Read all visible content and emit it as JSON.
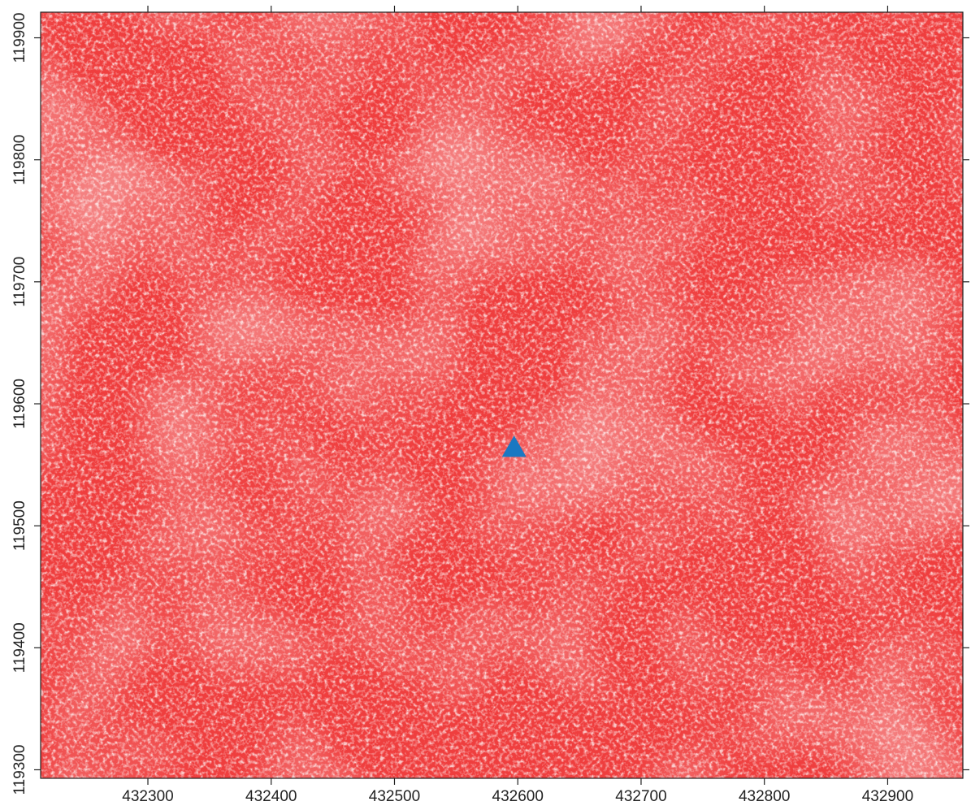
{
  "chart_data": {
    "type": "raster",
    "xlim": [
      432213,
      432961
    ],
    "ylim": [
      119293,
      119921
    ],
    "xticks": [
      432300,
      432400,
      432500,
      432600,
      432700,
      432800,
      432900
    ],
    "yticks": [
      119300,
      119400,
      119500,
      119600,
      119700,
      119800,
      119900
    ],
    "points": {
      "x": [
        432597
      ],
      "y": [
        119564
      ],
      "color": "#1a78c2",
      "marker": "triangle"
    }
  }
}
